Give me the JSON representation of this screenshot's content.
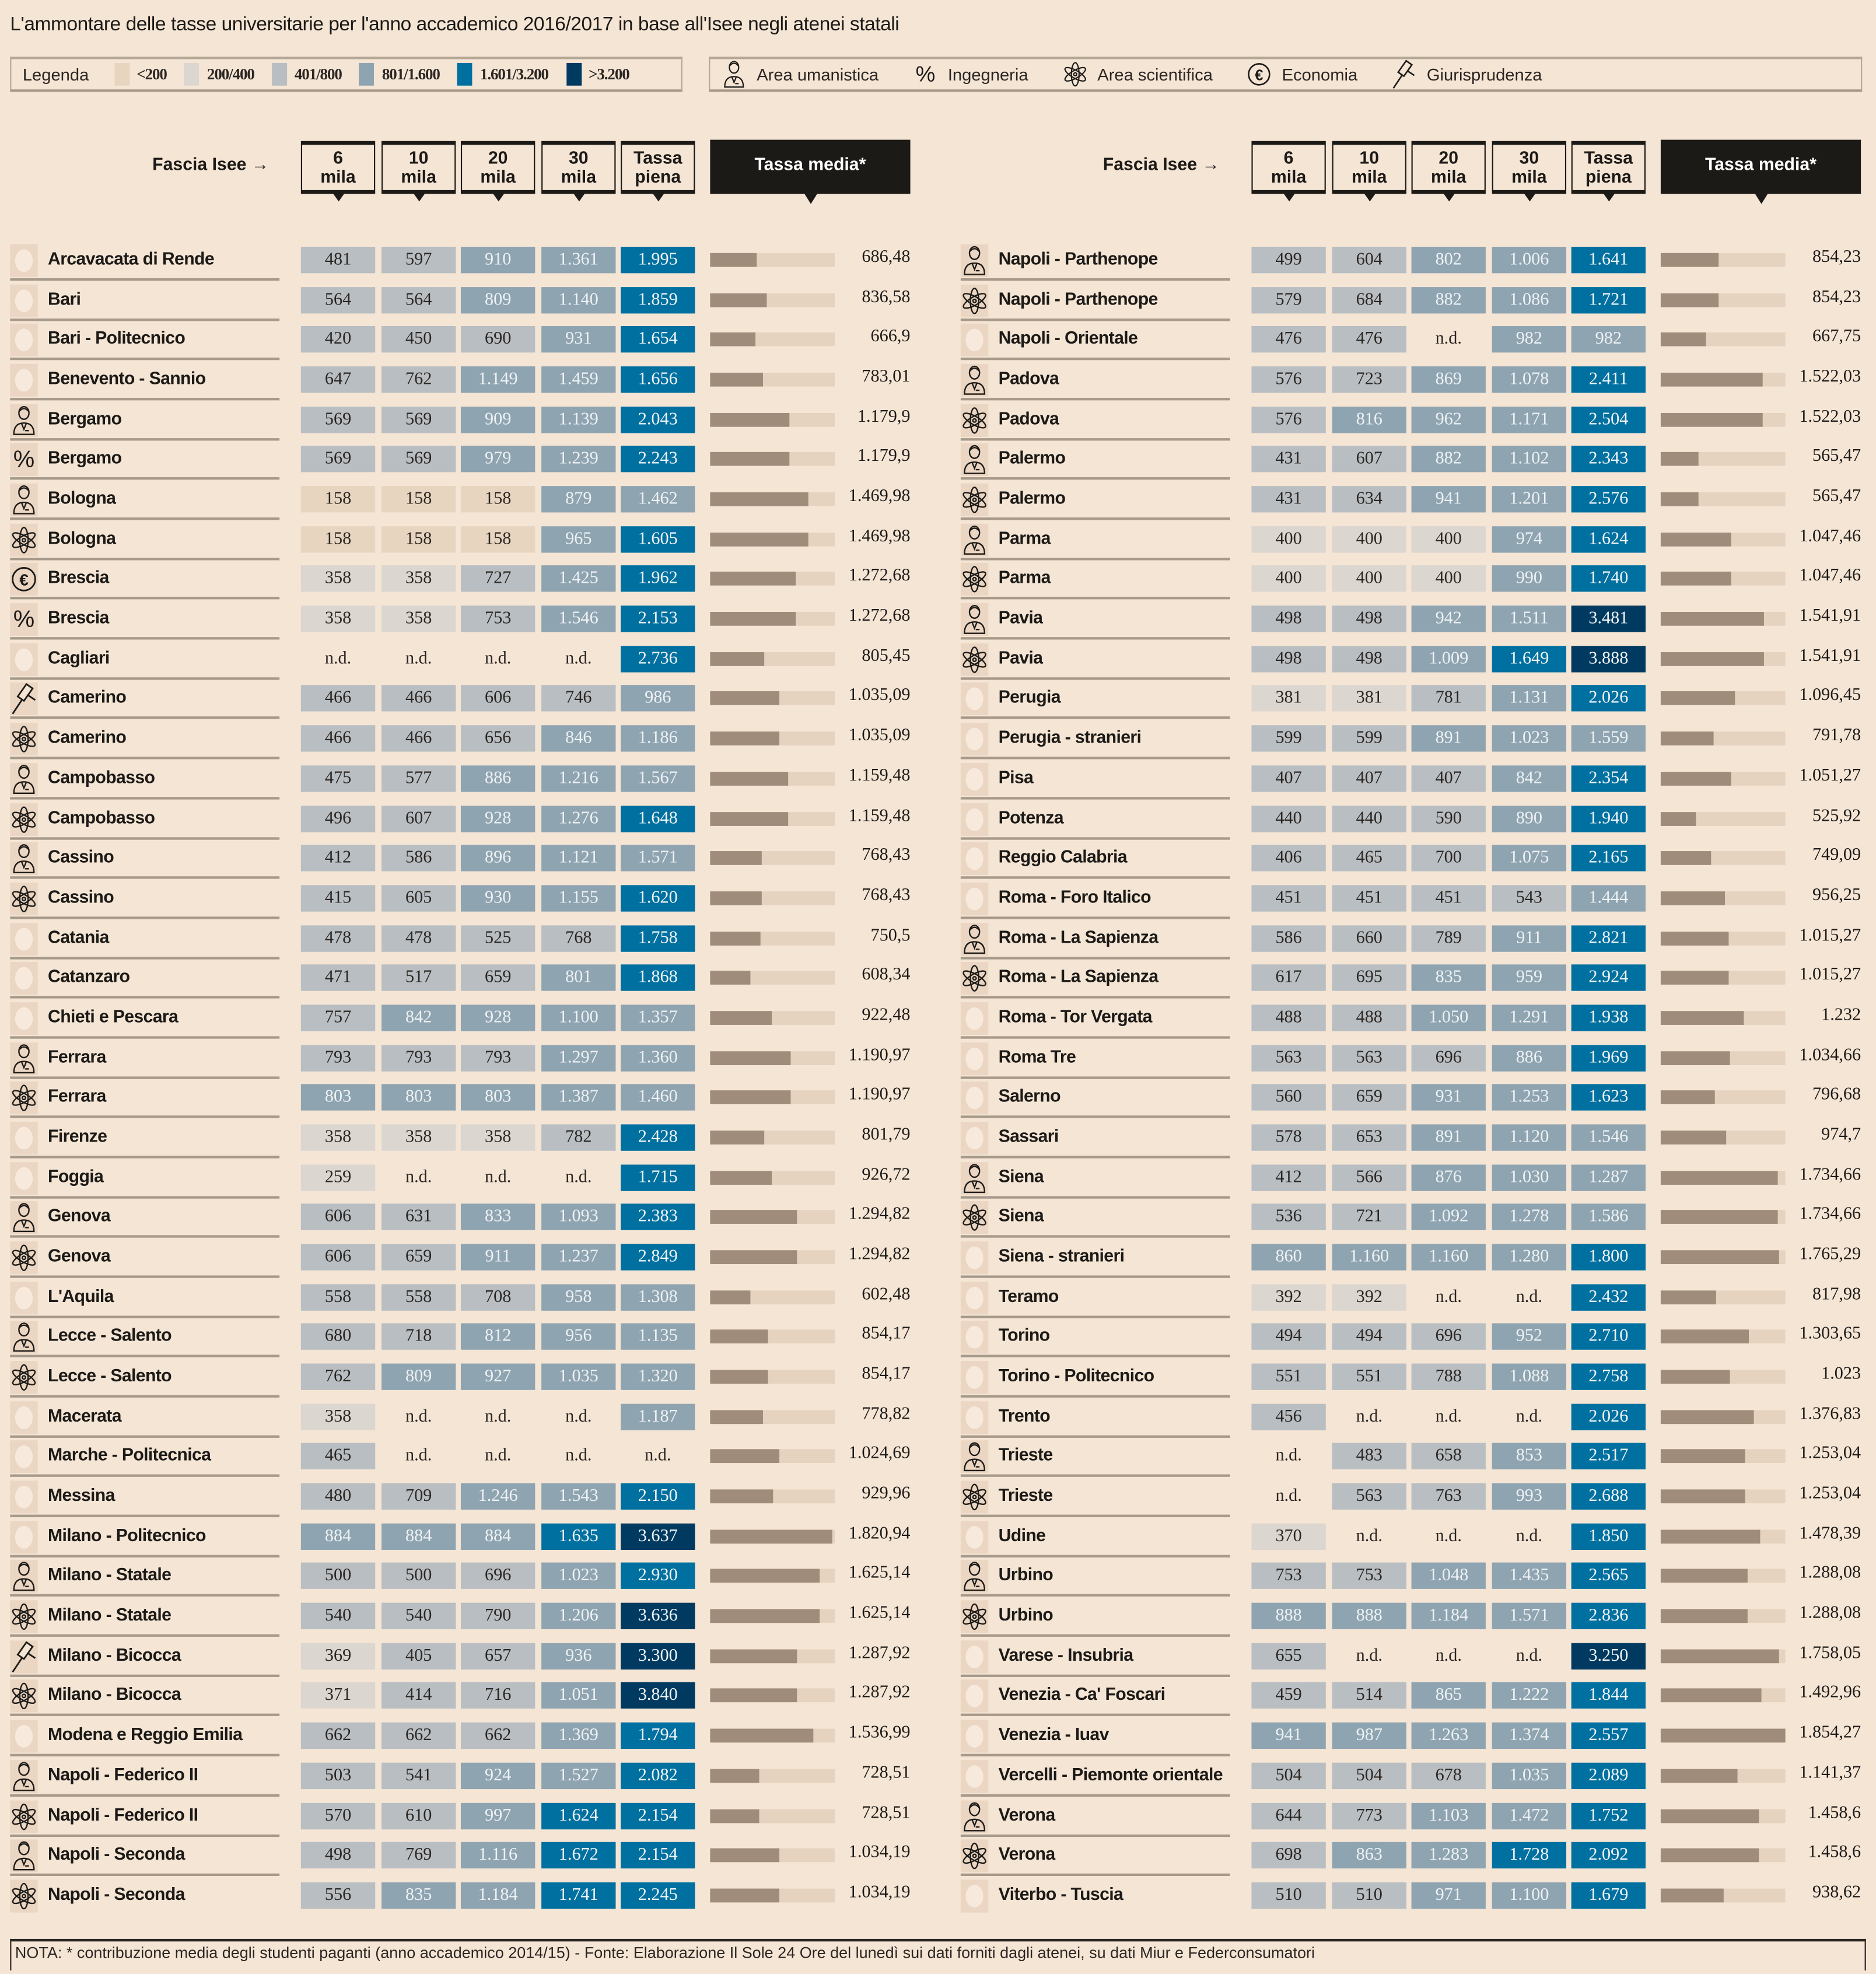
{
  "title": "L'ammontare delle tasse universitarie per l'anno accademico 2016/2017 in base all'Isee negli atenei statali",
  "legend": {
    "label": "Legenda",
    "bins": [
      {
        "label": "<200",
        "color": "#e8d5c0"
      },
      {
        "label": "200/400",
        "color": "#dcd6d0"
      },
      {
        "label": "401/800",
        "color": "#b8bec2"
      },
      {
        "label": "801/1.600",
        "color": "#8fa4b1"
      },
      {
        "label": "1.601/3.200",
        "color": "#0070a0"
      },
      {
        "label": ">3.200",
        "color": "#003a60"
      }
    ],
    "categories": [
      {
        "icon": "umanistica",
        "label": "Area umanistica"
      },
      {
        "icon": "ingegneria",
        "label": "Ingegneria"
      },
      {
        "icon": "scientifica",
        "label": "Area scientifica"
      },
      {
        "icon": "economia",
        "label": "Economia"
      },
      {
        "icon": "giurisprudenza",
        "label": "Giurisprudenza"
      }
    ]
  },
  "header": {
    "fascia_label": "Fascia Isee",
    "columns": [
      {
        "l1": "6",
        "l2": "mila"
      },
      {
        "l1": "10",
        "l2": "mila"
      },
      {
        "l1": "20",
        "l2": "mila"
      },
      {
        "l1": "30",
        "l2": "mila"
      },
      {
        "l1": "Tassa",
        "l2": "piena"
      }
    ],
    "media_label": "Tassa media*"
  },
  "bar_max": 1854.27,
  "left_rows": [
    [
      "none",
      "Arcavacata di Rende",
      "481",
      "597",
      "910",
      "1.361",
      "1.995",
      "686,48"
    ],
    [
      "none",
      "Bari",
      "564",
      "564",
      "809",
      "1.140",
      "1.859",
      "836,58"
    ],
    [
      "none",
      "Bari - Politecnico",
      "420",
      "450",
      "690",
      "931",
      "1.654",
      "666,9"
    ],
    [
      "none",
      "Benevento - Sannio",
      "647",
      "762",
      "1.149",
      "1.459",
      "1.656",
      "783,01"
    ],
    [
      "umanistica",
      "Bergamo",
      "569",
      "569",
      "909",
      "1.139",
      "2.043",
      "1.179,9"
    ],
    [
      "ingegneria",
      "Bergamo",
      "569",
      "569",
      "979",
      "1.239",
      "2.243",
      "1.179,9"
    ],
    [
      "umanistica",
      "Bologna",
      "158",
      "158",
      "158",
      "879",
      "1.462",
      "1.469,98"
    ],
    [
      "scientifica",
      "Bologna",
      "158",
      "158",
      "158",
      "965",
      "1.605",
      "1.469,98"
    ],
    [
      "economia",
      "Brescia",
      "358",
      "358",
      "727",
      "1.425",
      "1.962",
      "1.272,68"
    ],
    [
      "ingegneria",
      "Brescia",
      "358",
      "358",
      "753",
      "1.546",
      "2.153",
      "1.272,68"
    ],
    [
      "none",
      "Cagliari",
      "n.d.",
      "n.d.",
      "n.d.",
      "n.d.",
      "2.736",
      "805,45"
    ],
    [
      "giurisprudenza",
      "Camerino",
      "466",
      "466",
      "606",
      "746",
      "986",
      "1.035,09"
    ],
    [
      "scientifica",
      "Camerino",
      "466",
      "466",
      "656",
      "846",
      "1.186",
      "1.035,09"
    ],
    [
      "umanistica",
      "Campobasso",
      "475",
      "577",
      "886",
      "1.216",
      "1.567",
      "1.159,48"
    ],
    [
      "scientifica",
      "Campobasso",
      "496",
      "607",
      "928",
      "1.276",
      "1.648",
      "1.159,48"
    ],
    [
      "umanistica",
      "Cassino",
      "412",
      "586",
      "896",
      "1.121",
      "1.571",
      "768,43"
    ],
    [
      "scientifica",
      "Cassino",
      "415",
      "605",
      "930",
      "1.155",
      "1.620",
      "768,43"
    ],
    [
      "none",
      "Catania",
      "478",
      "478",
      "525",
      "768",
      "1.758",
      "750,5"
    ],
    [
      "none",
      "Catanzaro",
      "471",
      "517",
      "659",
      "801",
      "1.868",
      "608,34"
    ],
    [
      "none",
      "Chieti e Pescara",
      "757",
      "842",
      "928",
      "1.100",
      "1.357",
      "922,48"
    ],
    [
      "umanistica",
      "Ferrara",
      "793",
      "793",
      "793",
      "1.297",
      "1.360",
      "1.190,97"
    ],
    [
      "scientifica",
      "Ferrara",
      "803",
      "803",
      "803",
      "1.387",
      "1.460",
      "1.190,97"
    ],
    [
      "none",
      "Firenze",
      "358",
      "358",
      "358",
      "782",
      "2.428",
      "801,79"
    ],
    [
      "none",
      "Foggia",
      "259",
      "n.d.",
      "n.d.",
      "n.d.",
      "1.715",
      "926,72"
    ],
    [
      "umanistica",
      "Genova",
      "606",
      "631",
      "833",
      "1.093",
      "2.383",
      "1.294,82"
    ],
    [
      "scientifica",
      "Genova",
      "606",
      "659",
      "911",
      "1.237",
      "2.849",
      "1.294,82"
    ],
    [
      "none",
      "L'Aquila",
      "558",
      "558",
      "708",
      "958",
      "1.308",
      "602,48"
    ],
    [
      "umanistica",
      "Lecce - Salento",
      "680",
      "718",
      "812",
      "956",
      "1.135",
      "854,17"
    ],
    [
      "scientifica",
      "Lecce - Salento",
      "762",
      "809",
      "927",
      "1.035",
      "1.320",
      "854,17"
    ],
    [
      "none",
      "Macerata",
      "358",
      "n.d.",
      "n.d.",
      "n.d.",
      "1.187",
      "778,82"
    ],
    [
      "none",
      "Marche - Politecnica",
      "465",
      "n.d.",
      "n.d.",
      "n.d.",
      "n.d.",
      "1.024,69"
    ],
    [
      "none",
      "Messina",
      "480",
      "709",
      "1.246",
      "1.543",
      "2.150",
      "929,96"
    ],
    [
      "none",
      "Milano - Politecnico",
      "884",
      "884",
      "884",
      "1.635",
      "3.637",
      "1.820,94"
    ],
    [
      "umanistica",
      "Milano - Statale",
      "500",
      "500",
      "696",
      "1.023",
      "2.930",
      "1.625,14"
    ],
    [
      "scientifica",
      "Milano - Statale",
      "540",
      "540",
      "790",
      "1.206",
      "3.636",
      "1.625,14"
    ],
    [
      "giurisprudenza",
      "Milano - Bicocca",
      "369",
      "405",
      "657",
      "936",
      "3.300",
      "1.287,92"
    ],
    [
      "scientifica",
      "Milano - Bicocca",
      "371",
      "414",
      "716",
      "1.051",
      "3.840",
      "1.287,92"
    ],
    [
      "none",
      "Modena e Reggio Emilia",
      "662",
      "662",
      "662",
      "1.369",
      "1.794",
      "1.536,99"
    ],
    [
      "umanistica",
      "Napoli - Federico II",
      "503",
      "541",
      "924",
      "1.527",
      "2.082",
      "728,51"
    ],
    [
      "scientifica",
      "Napoli - Federico II",
      "570",
      "610",
      "997",
      "1.624",
      "2.154",
      "728,51"
    ],
    [
      "umanistica",
      "Napoli - Seconda",
      "498",
      "769",
      "1.116",
      "1.672",
      "2.154",
      "1.034,19"
    ],
    [
      "scientifica",
      "Napoli - Seconda",
      "556",
      "835",
      "1.184",
      "1.741",
      "2.245",
      "1.034,19"
    ]
  ],
  "right_rows": [
    [
      "umanistica",
      "Napoli - Parthenope",
      "499",
      "604",
      "802",
      "1.006",
      "1.641",
      "854,23"
    ],
    [
      "scientifica",
      "Napoli - Parthenope",
      "579",
      "684",
      "882",
      "1.086",
      "1.721",
      "854,23"
    ],
    [
      "none",
      "Napoli - Orientale",
      "476",
      "476",
      "n.d.",
      "982",
      "982",
      "667,75"
    ],
    [
      "umanistica",
      "Padova",
      "576",
      "723",
      "869",
      "1.078",
      "2.411",
      "1.522,03"
    ],
    [
      "scientifica",
      "Padova",
      "576",
      "816",
      "962",
      "1.171",
      "2.504",
      "1.522,03"
    ],
    [
      "umanistica",
      "Palermo",
      "431",
      "607",
      "882",
      "1.102",
      "2.343",
      "565,47"
    ],
    [
      "scientifica",
      "Palermo",
      "431",
      "634",
      "941",
      "1.201",
      "2.576",
      "565,47"
    ],
    [
      "umanistica",
      "Parma",
      "400",
      "400",
      "400",
      "974",
      "1.624",
      "1.047,46"
    ],
    [
      "scientifica",
      "Parma",
      "400",
      "400",
      "400",
      "990",
      "1.740",
      "1.047,46"
    ],
    [
      "umanistica",
      "Pavia",
      "498",
      "498",
      "942",
      "1.511",
      "3.481",
      "1.541,91"
    ],
    [
      "scientifica",
      "Pavia",
      "498",
      "498",
      "1.009",
      "1.649",
      "3.888",
      "1.541,91"
    ],
    [
      "none",
      "Perugia",
      "381",
      "381",
      "781",
      "1.131",
      "2.026",
      "1.096,45"
    ],
    [
      "none",
      "Perugia - stranieri",
      "599",
      "599",
      "891",
      "1.023",
      "1.559",
      "791,78"
    ],
    [
      "none",
      "Pisa",
      "407",
      "407",
      "407",
      "842",
      "2.354",
      "1.051,27"
    ],
    [
      "none",
      "Potenza",
      "440",
      "440",
      "590",
      "890",
      "1.940",
      "525,92"
    ],
    [
      "none",
      "Reggio Calabria",
      "406",
      "465",
      "700",
      "1.075",
      "2.165",
      "749,09"
    ],
    [
      "none",
      "Roma - Foro Italico",
      "451",
      "451",
      "451",
      "543",
      "1.444",
      "956,25"
    ],
    [
      "umanistica",
      "Roma - La Sapienza",
      "586",
      "660",
      "789",
      "911",
      "2.821",
      "1.015,27"
    ],
    [
      "scientifica",
      "Roma - La Sapienza",
      "617",
      "695",
      "835",
      "959",
      "2.924",
      "1.015,27"
    ],
    [
      "none",
      "Roma - Tor Vergata",
      "488",
      "488",
      "1.050",
      "1.291",
      "1.938",
      "1.232"
    ],
    [
      "none",
      "Roma Tre",
      "563",
      "563",
      "696",
      "886",
      "1.969",
      "1.034,66"
    ],
    [
      "none",
      "Salerno",
      "560",
      "659",
      "931",
      "1.253",
      "1.623",
      "796,68"
    ],
    [
      "none",
      "Sassari",
      "578",
      "653",
      "891",
      "1.120",
      "1.546",
      "974,7"
    ],
    [
      "umanistica",
      "Siena",
      "412",
      "566",
      "876",
      "1.030",
      "1.287",
      "1.734,66"
    ],
    [
      "scientifica",
      "Siena",
      "536",
      "721",
      "1.092",
      "1.278",
      "1.586",
      "1.734,66"
    ],
    [
      "none",
      "Siena - stranieri",
      "860",
      "1.160",
      "1.160",
      "1.280",
      "1.800",
      "1.765,29"
    ],
    [
      "none",
      "Teramo",
      "392",
      "392",
      "n.d.",
      "n.d.",
      "2.432",
      "817,98"
    ],
    [
      "none",
      "Torino",
      "494",
      "494",
      "696",
      "952",
      "2.710",
      "1.303,65"
    ],
    [
      "none",
      "Torino - Politecnico",
      "551",
      "551",
      "788",
      "1.088",
      "2.758",
      "1.023"
    ],
    [
      "none",
      "Trento",
      "456",
      "n.d.",
      "n.d.",
      "n.d.",
      "2.026",
      "1.376,83"
    ],
    [
      "umanistica",
      "Trieste",
      "n.d.",
      "483",
      "658",
      "853",
      "2.517",
      "1.253,04"
    ],
    [
      "scientifica",
      "Trieste",
      "n.d.",
      "563",
      "763",
      "993",
      "2.688",
      "1.253,04"
    ],
    [
      "none",
      "Udine",
      "370",
      "n.d.",
      "n.d.",
      "n.d.",
      "1.850",
      "1.478,39"
    ],
    [
      "umanistica",
      "Urbino",
      "753",
      "753",
      "1.048",
      "1.435",
      "2.565",
      "1.288,08"
    ],
    [
      "scientifica",
      "Urbino",
      "888",
      "888",
      "1.184",
      "1.571",
      "2.836",
      "1.288,08"
    ],
    [
      "none",
      "Varese - Insubria",
      "655",
      "n.d.",
      "n.d.",
      "n.d.",
      "3.250",
      "1.758,05"
    ],
    [
      "none",
      "Venezia - Ca' Foscari",
      "459",
      "514",
      "865",
      "1.222",
      "1.844",
      "1.492,96"
    ],
    [
      "none",
      "Venezia - Iuav",
      "941",
      "987",
      "1.263",
      "1.374",
      "2.557",
      "1.854,27"
    ],
    [
      "none",
      "Vercelli - Piemonte orientale",
      "504",
      "504",
      "678",
      "1.035",
      "2.089",
      "1.141,37"
    ],
    [
      "umanistica",
      "Verona",
      "644",
      "773",
      "1.103",
      "1.472",
      "1.752",
      "1.458,6"
    ],
    [
      "scientifica",
      "Verona",
      "698",
      "863",
      "1.283",
      "1.728",
      "2.092",
      "1.458,6"
    ],
    [
      "none",
      "Viterbo - Tuscia",
      "510",
      "510",
      "971",
      "1.100",
      "1.679",
      "938,62"
    ]
  ],
  "footer": "NOTA: * contribuzione media degli studenti paganti  (anno accademico 2014/15) - Fonte: Elaborazione Il Sole 24 Ore del lunedì sui dati forniti dagli atenei, su dati Miur e Federconsumatori"
}
